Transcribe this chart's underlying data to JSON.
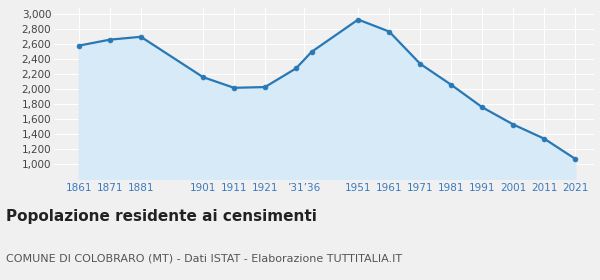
{
  "years": [
    1861,
    1871,
    1881,
    1901,
    1911,
    1921,
    1931,
    1936,
    1951,
    1961,
    1971,
    1981,
    1991,
    2001,
    2011,
    2021
  ],
  "population": [
    2583,
    2663,
    2701,
    2163,
    2020,
    2030,
    2280,
    2500,
    2931,
    2771,
    2340,
    2060,
    1760,
    1530,
    1340,
    1070
  ],
  "line_color": "#2878b5",
  "fill_color": "#d6eaf8",
  "marker_color": "#2878b5",
  "background_color": "#f0f0f0",
  "grid_color": "#ffffff",
  "title": "Popolazione residente ai censimenti",
  "subtitle": "COMUNE DI COLOBRARO (MT) - Dati ISTAT - Elaborazione TUTTITALIA.IT",
  "ylim": [
    800,
    3080
  ],
  "yticks": [
    1000,
    1200,
    1400,
    1600,
    1800,
    2000,
    2200,
    2400,
    2600,
    2800,
    3000
  ],
  "xlim_left": 1853,
  "xlim_right": 2027,
  "title_fontsize": 11,
  "subtitle_fontsize": 8,
  "tick_fontsize": 7.5,
  "x_tick_positions": [
    1861,
    1871,
    1881,
    1901,
    1911,
    1921,
    1933.5,
    1951,
    1961,
    1971,
    1981,
    1991,
    2001,
    2011,
    2021
  ],
  "x_tick_labels": [
    "1861",
    "1871",
    "1881",
    "1901",
    "1911",
    "1921",
    "’31’36",
    "1951",
    "1961",
    "1971",
    "1981",
    "1991",
    "2001",
    "2011",
    "2021"
  ]
}
